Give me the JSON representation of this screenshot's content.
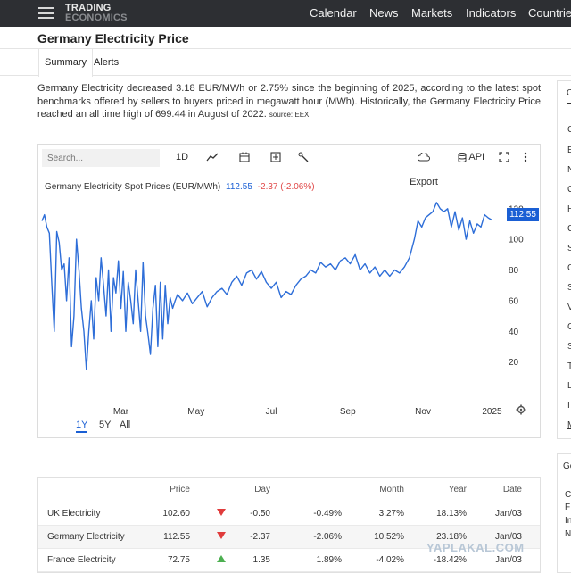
{
  "nav": {
    "logo_line1": "TRADING",
    "logo_line2": "ECONOMICS",
    "links": [
      "Calendar",
      "News",
      "Markets",
      "Indicators",
      "Countries"
    ]
  },
  "page": {
    "title": "Germany Electricity Price",
    "tabs": [
      "Summary",
      "Alerts"
    ],
    "description": "Germany Electricity decreased 3.18 EUR/MWh or 2.75% since the beginning of 2025, according to the latest spot benchmarks offered by sellers to buyers priced in megawatt hour (MWh). Historically, the Germany Electricity Price reached an all time high of 699.44 in August of 2022.",
    "source": "source: EEX"
  },
  "toolbar": {
    "search_placeholder": "Search...",
    "interval": "1D",
    "export_label": "Export",
    "api_label": "API"
  },
  "legend": {
    "name": "Germany Electricity Spot Prices (EUR/MWh)",
    "value": "112.55",
    "change": "-2.37 (-2.06%)"
  },
  "price_tag": "112.55",
  "range_tabs": [
    "1Y",
    "5Y",
    "All"
  ],
  "colors": {
    "line": "#2e6ed8",
    "accent": "#1a5fd4",
    "down": "#e03c3c",
    "up": "#4caf50",
    "nav_bg": "#2d2f33"
  },
  "chart_data": {
    "type": "line",
    "title": "Germany Electricity Spot Prices (EUR/MWh)",
    "x_tick_labels": [
      "Mar",
      "May",
      "Jul",
      "Sep",
      "Nov",
      "2025"
    ],
    "y_tick_labels": [
      "20",
      "40",
      "60",
      "80",
      "100",
      "120"
    ],
    "ylim": [
      0,
      128
    ],
    "last_value": 112.55,
    "series": [
      {
        "name": "Germany Electricity Spot Prices",
        "points": [
          [
            "2024-01-04",
            112
          ],
          [
            "2024-01-06",
            116
          ],
          [
            "2024-01-08",
            108
          ],
          [
            "2024-01-10",
            104
          ],
          [
            "2024-01-12",
            70
          ],
          [
            "2024-01-14",
            40
          ],
          [
            "2024-01-16",
            105
          ],
          [
            "2024-01-18",
            98
          ],
          [
            "2024-01-20",
            80
          ],
          [
            "2024-01-22",
            84
          ],
          [
            "2024-01-24",
            60
          ],
          [
            "2024-01-26",
            88
          ],
          [
            "2024-01-28",
            30
          ],
          [
            "2024-01-30",
            50
          ],
          [
            "2024-02-01",
            100
          ],
          [
            "2024-02-03",
            80
          ],
          [
            "2024-02-05",
            55
          ],
          [
            "2024-02-07",
            40
          ],
          [
            "2024-02-09",
            15
          ],
          [
            "2024-02-11",
            40
          ],
          [
            "2024-02-13",
            60
          ],
          [
            "2024-02-15",
            35
          ],
          [
            "2024-02-17",
            75
          ],
          [
            "2024-02-19",
            60
          ],
          [
            "2024-02-21",
            88
          ],
          [
            "2024-02-23",
            70
          ],
          [
            "2024-02-25",
            50
          ],
          [
            "2024-02-27",
            80
          ],
          [
            "2024-02-29",
            40
          ],
          [
            "2024-03-02",
            75
          ],
          [
            "2024-03-04",
            65
          ],
          [
            "2024-03-06",
            86
          ],
          [
            "2024-03-08",
            55
          ],
          [
            "2024-03-10",
            79
          ],
          [
            "2024-03-12",
            40
          ],
          [
            "2024-03-14",
            72
          ],
          [
            "2024-03-16",
            60
          ],
          [
            "2024-03-18",
            45
          ],
          [
            "2024-03-20",
            80
          ],
          [
            "2024-03-22",
            60
          ],
          [
            "2024-03-24",
            40
          ],
          [
            "2024-03-26",
            85
          ],
          [
            "2024-03-28",
            50
          ],
          [
            "2024-03-30",
            38
          ],
          [
            "2024-04-01",
            25
          ],
          [
            "2024-04-03",
            55
          ],
          [
            "2024-04-05",
            70
          ],
          [
            "2024-04-07",
            30
          ],
          [
            "2024-04-09",
            72
          ],
          [
            "2024-04-11",
            35
          ],
          [
            "2024-04-13",
            70
          ],
          [
            "2024-04-15",
            45
          ],
          [
            "2024-04-17",
            62
          ],
          [
            "2024-04-19",
            55
          ],
          [
            "2024-04-21",
            60
          ],
          [
            "2024-04-23",
            64
          ],
          [
            "2024-04-27",
            60
          ],
          [
            "2024-05-01",
            65
          ],
          [
            "2024-05-05",
            58
          ],
          [
            "2024-05-09",
            62
          ],
          [
            "2024-05-13",
            66
          ],
          [
            "2024-05-17",
            56
          ],
          [
            "2024-05-21",
            62
          ],
          [
            "2024-05-25",
            66
          ],
          [
            "2024-05-29",
            68
          ],
          [
            "2024-06-02",
            64
          ],
          [
            "2024-06-06",
            72
          ],
          [
            "2024-06-10",
            76
          ],
          [
            "2024-06-14",
            70
          ],
          [
            "2024-06-18",
            78
          ],
          [
            "2024-06-22",
            80
          ],
          [
            "2024-06-26",
            74
          ],
          [
            "2024-06-30",
            79
          ],
          [
            "2024-07-04",
            72
          ],
          [
            "2024-07-08",
            68
          ],
          [
            "2024-07-12",
            72
          ],
          [
            "2024-07-16",
            62
          ],
          [
            "2024-07-20",
            66
          ],
          [
            "2024-07-24",
            64
          ],
          [
            "2024-07-28",
            70
          ],
          [
            "2024-08-01",
            74
          ],
          [
            "2024-08-05",
            76
          ],
          [
            "2024-08-09",
            80
          ],
          [
            "2024-08-13",
            78
          ],
          [
            "2024-08-17",
            85
          ],
          [
            "2024-08-21",
            82
          ],
          [
            "2024-08-25",
            84
          ],
          [
            "2024-08-29",
            80
          ],
          [
            "2024-09-02",
            86
          ],
          [
            "2024-09-06",
            88
          ],
          [
            "2024-09-10",
            84
          ],
          [
            "2024-09-14",
            90
          ],
          [
            "2024-09-18",
            80
          ],
          [
            "2024-09-22",
            84
          ],
          [
            "2024-09-26",
            78
          ],
          [
            "2024-09-30",
            82
          ],
          [
            "2024-10-04",
            76
          ],
          [
            "2024-10-08",
            80
          ],
          [
            "2024-10-12",
            76
          ],
          [
            "2024-10-16",
            80
          ],
          [
            "2024-10-20",
            78
          ],
          [
            "2024-10-24",
            82
          ],
          [
            "2024-10-28",
            88
          ],
          [
            "2024-11-01",
            100
          ],
          [
            "2024-11-04",
            112
          ],
          [
            "2024-11-07",
            108
          ],
          [
            "2024-11-10",
            114
          ],
          [
            "2024-11-13",
            116
          ],
          [
            "2024-11-16",
            118
          ],
          [
            "2024-11-19",
            124
          ],
          [
            "2024-11-22",
            120
          ],
          [
            "2024-11-25",
            118
          ],
          [
            "2024-11-28",
            120
          ],
          [
            "2024-12-01",
            108
          ],
          [
            "2024-12-04",
            118
          ],
          [
            "2024-12-07",
            106
          ],
          [
            "2024-12-10",
            114
          ],
          [
            "2024-12-13",
            100
          ],
          [
            "2024-12-16",
            112
          ],
          [
            "2024-12-19",
            104
          ],
          [
            "2024-12-22",
            110
          ],
          [
            "2024-12-25",
            108
          ],
          [
            "2024-12-28",
            116
          ],
          [
            "2024-12-31",
            114
          ],
          [
            "2025-01-03",
            112.55
          ]
        ]
      }
    ]
  },
  "table": {
    "headers": [
      "",
      "Price",
      "",
      "Day",
      "Month",
      "Year",
      "Date"
    ],
    "rows": [
      {
        "name": "UK Electricity",
        "price": "102.60",
        "dir": "down",
        "day": "-0.50",
        "day_pct": "-0.49%",
        "month": "3.27%",
        "year": "18.13%",
        "date": "Jan/03"
      },
      {
        "name": "Germany Electricity",
        "price": "112.55",
        "dir": "down",
        "day": "-2.37",
        "day_pct": "-2.06%",
        "month": "10.52%",
        "year": "23.18%",
        "date": "Jan/03"
      },
      {
        "name": "France Electricity",
        "price": "72.75",
        "dir": "up",
        "day": "1.35",
        "day_pct": "1.89%",
        "month": "-4.02%",
        "year": "-18.42%",
        "date": "Jan/03"
      }
    ]
  },
  "sidebar": {
    "items": [
      "C",
      "E",
      "N",
      "C",
      "H",
      "C",
      "S",
      "C",
      "S",
      "V",
      "C",
      "S",
      "T",
      "L",
      "I",
      "M"
    ],
    "bottom_title": "Ge",
    "bottom_items": [
      "C",
      "F",
      "In",
      "N"
    ]
  },
  "watermark": "YAPLAKAL.COM"
}
